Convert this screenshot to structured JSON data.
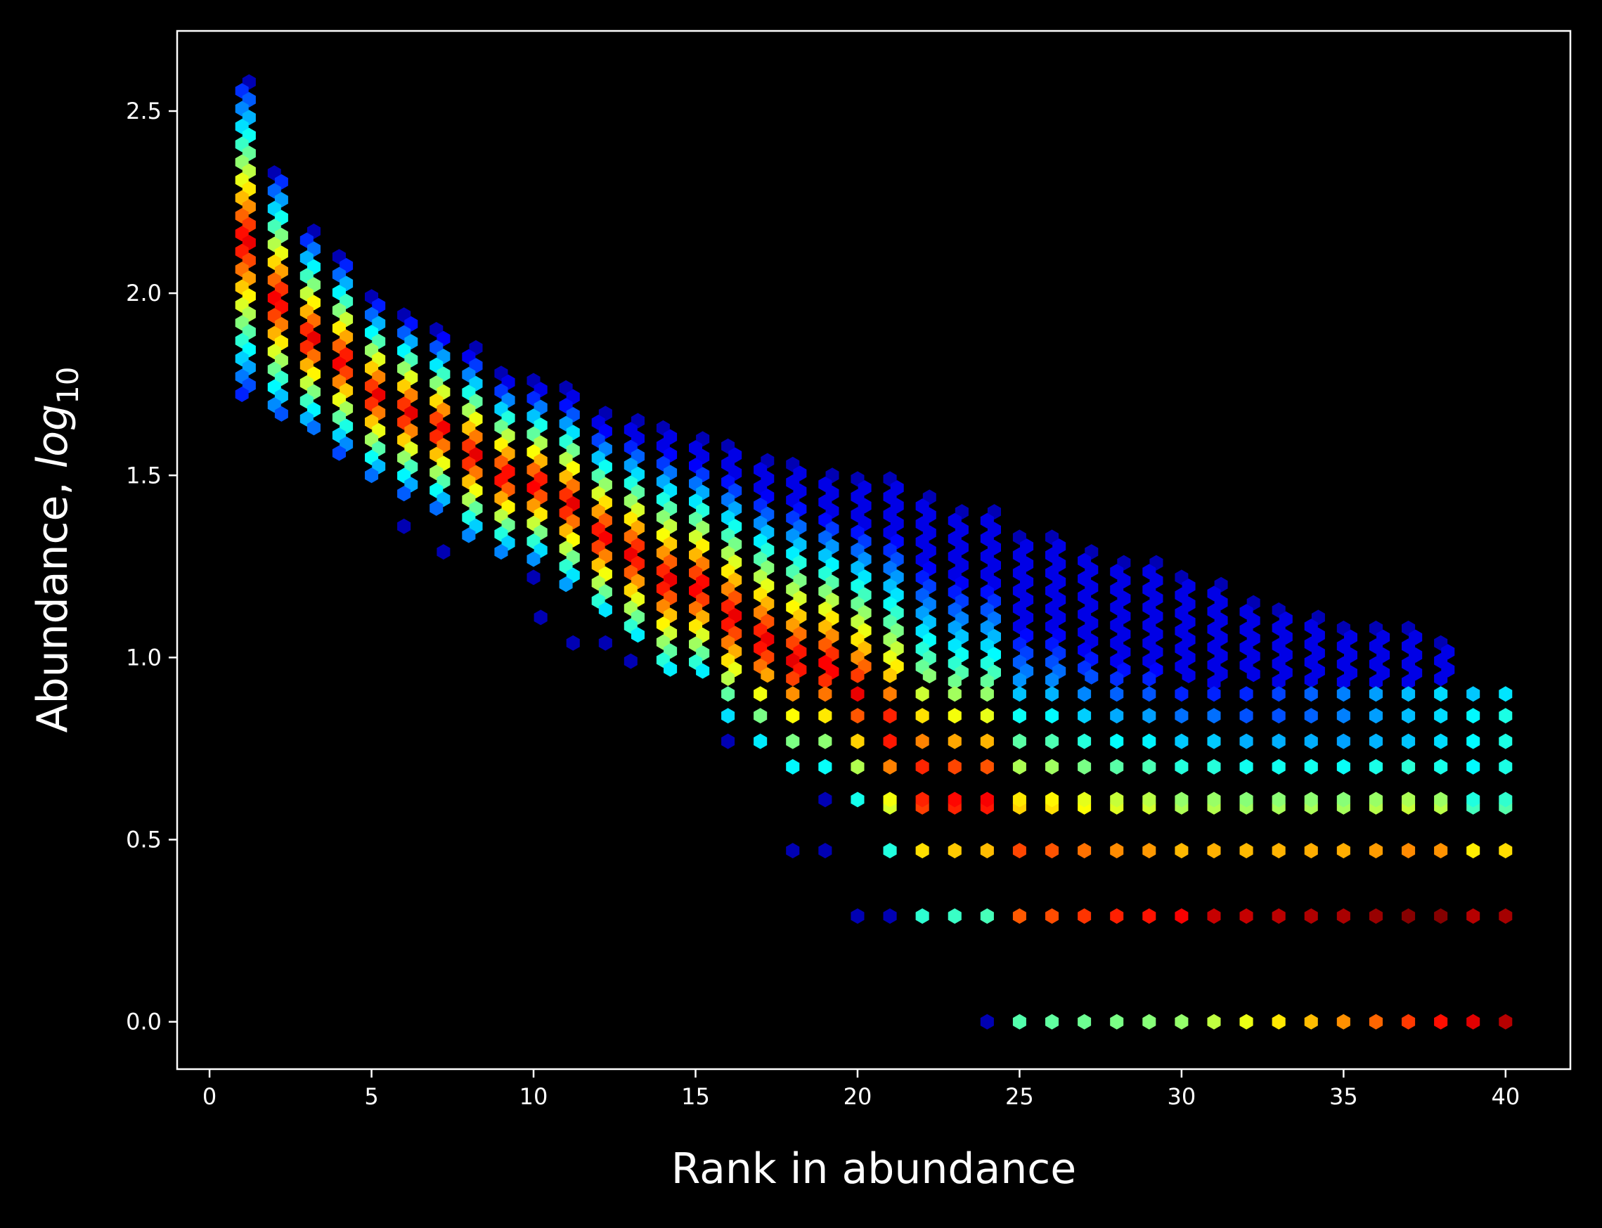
{
  "chart_data": {
    "type": "hexbin",
    "colormap": "jet",
    "background": "#000000",
    "foreground": "#ffffff",
    "xlabel": "Rank in abundance",
    "ylabel_text": "Abundance, ",
    "ylabel_math": "log",
    "ylabel_subscript": "10",
    "xlim": [
      -1,
      42
    ],
    "ylim": [
      -0.13,
      2.72
    ],
    "xticks": [
      0,
      5,
      10,
      15,
      20,
      25,
      30,
      35,
      40
    ],
    "xtick_labels": [
      "0",
      "5",
      "10",
      "15",
      "20",
      "25",
      "30",
      "35",
      "40"
    ],
    "yticks": [
      0.0,
      0.5,
      1.0,
      1.5,
      2.0,
      2.5
    ],
    "ytick_labels": [
      "0.0",
      "0.5",
      "1.0",
      "1.5",
      "2.0",
      "2.5"
    ],
    "grid": false,
    "legend": "none",
    "bins_description": "density of (rank, log10 abundance) pairs; color from dark blue (low) to dark red (high)",
    "columns": [
      {
        "rank": 1,
        "top": 2.58,
        "bottom": 1.72,
        "low_outliers": []
      },
      {
        "rank": 2,
        "top": 2.33,
        "bottom": 1.65,
        "low_outliers": []
      },
      {
        "rank": 3,
        "top": 2.17,
        "bottom": 1.61,
        "low_outliers": []
      },
      {
        "rank": 4,
        "top": 2.1,
        "bottom": 1.56,
        "low_outliers": []
      },
      {
        "rank": 5,
        "top": 1.99,
        "bottom": 1.49,
        "low_outliers": []
      },
      {
        "rank": 6,
        "top": 1.94,
        "bottom": 1.45,
        "low_outliers": [
          1.36
        ]
      },
      {
        "rank": 7,
        "top": 1.9,
        "bottom": 1.41,
        "low_outliers": [
          1.29
        ]
      },
      {
        "rank": 8,
        "top": 1.85,
        "bottom": 1.33,
        "low_outliers": []
      },
      {
        "rank": 9,
        "top": 1.78,
        "bottom": 1.29,
        "low_outliers": []
      },
      {
        "rank": 10,
        "top": 1.76,
        "bottom": 1.27,
        "low_outliers": [
          1.22,
          1.11
        ]
      },
      {
        "rank": 11,
        "top": 1.74,
        "bottom": 1.2,
        "low_outliers": [
          1.04
        ]
      },
      {
        "rank": 12,
        "top": 1.67,
        "bottom": 1.11,
        "low_outliers": [
          1.04
        ]
      },
      {
        "rank": 13,
        "top": 1.65,
        "bottom": 1.04,
        "low_outliers": [
          0.99
        ]
      },
      {
        "rank": 14,
        "top": 1.63,
        "bottom": 0.95,
        "low_outliers": []
      },
      {
        "rank": 15,
        "top": 1.6,
        "bottom": 0.95,
        "low_outliers": []
      },
      {
        "rank": 16,
        "top": 1.58,
        "bottom": 0.84,
        "low_outliers": [
          0.77
        ]
      },
      {
        "rank": 17,
        "top": 1.54,
        "bottom": 0.77,
        "low_outliers": []
      },
      {
        "rank": 18,
        "top": 1.53,
        "bottom": 0.7,
        "low_outliers": [
          0.47
        ]
      },
      {
        "rank": 19,
        "top": 1.5,
        "bottom": 0.7,
        "low_outliers": [
          0.61,
          0.47
        ]
      },
      {
        "rank": 20,
        "top": 1.49,
        "bottom": 0.61,
        "low_outliers": [
          0.29
        ]
      },
      {
        "rank": 21,
        "top": 1.49,
        "bottom": 0.47,
        "low_outliers": [
          0.29
        ]
      },
      {
        "rank": 22,
        "top": 1.44,
        "bottom": 0.29,
        "low_outliers": []
      },
      {
        "rank": 23,
        "top": 1.4,
        "bottom": 0.29,
        "low_outliers": []
      },
      {
        "rank": 24,
        "top": 1.4,
        "bottom": 0.29,
        "low_outliers": [
          0.0
        ]
      },
      {
        "rank": 25,
        "top": 1.33,
        "bottom": 0.0,
        "low_outliers": []
      },
      {
        "rank": 26,
        "top": 1.33,
        "bottom": 0.0,
        "low_outliers": []
      },
      {
        "rank": 27,
        "top": 1.29,
        "bottom": 0.0,
        "low_outliers": []
      },
      {
        "rank": 28,
        "top": 1.26,
        "bottom": 0.0,
        "low_outliers": []
      },
      {
        "rank": 29,
        "top": 1.26,
        "bottom": 0.0,
        "low_outliers": []
      },
      {
        "rank": 30,
        "top": 1.22,
        "bottom": 0.0,
        "low_outliers": []
      },
      {
        "rank": 31,
        "top": 1.2,
        "bottom": 0.0,
        "low_outliers": []
      },
      {
        "rank": 32,
        "top": 1.15,
        "bottom": 0.0,
        "low_outliers": []
      },
      {
        "rank": 33,
        "top": 1.13,
        "bottom": 0.0,
        "low_outliers": []
      },
      {
        "rank": 34,
        "top": 1.11,
        "bottom": 0.0,
        "low_outliers": []
      },
      {
        "rank": 35,
        "top": 1.08,
        "bottom": 0.0,
        "low_outliers": []
      },
      {
        "rank": 36,
        "top": 1.08,
        "bottom": 0.0,
        "low_outliers": []
      },
      {
        "rank": 37,
        "top": 1.08,
        "bottom": 0.0,
        "low_outliers": []
      },
      {
        "rank": 38,
        "top": 1.04,
        "bottom": 0.0,
        "low_outliers": []
      },
      {
        "rank": 39,
        "top": 0.9,
        "bottom": 0.0,
        "low_outliers": []
      },
      {
        "rank": 40,
        "top": 0.9,
        "bottom": 0.0,
        "low_outliers": []
      }
    ],
    "discrete_levels": [
      0.0,
      0.29,
      0.47,
      0.59,
      0.61,
      0.7,
      0.77,
      0.84,
      0.9
    ]
  }
}
